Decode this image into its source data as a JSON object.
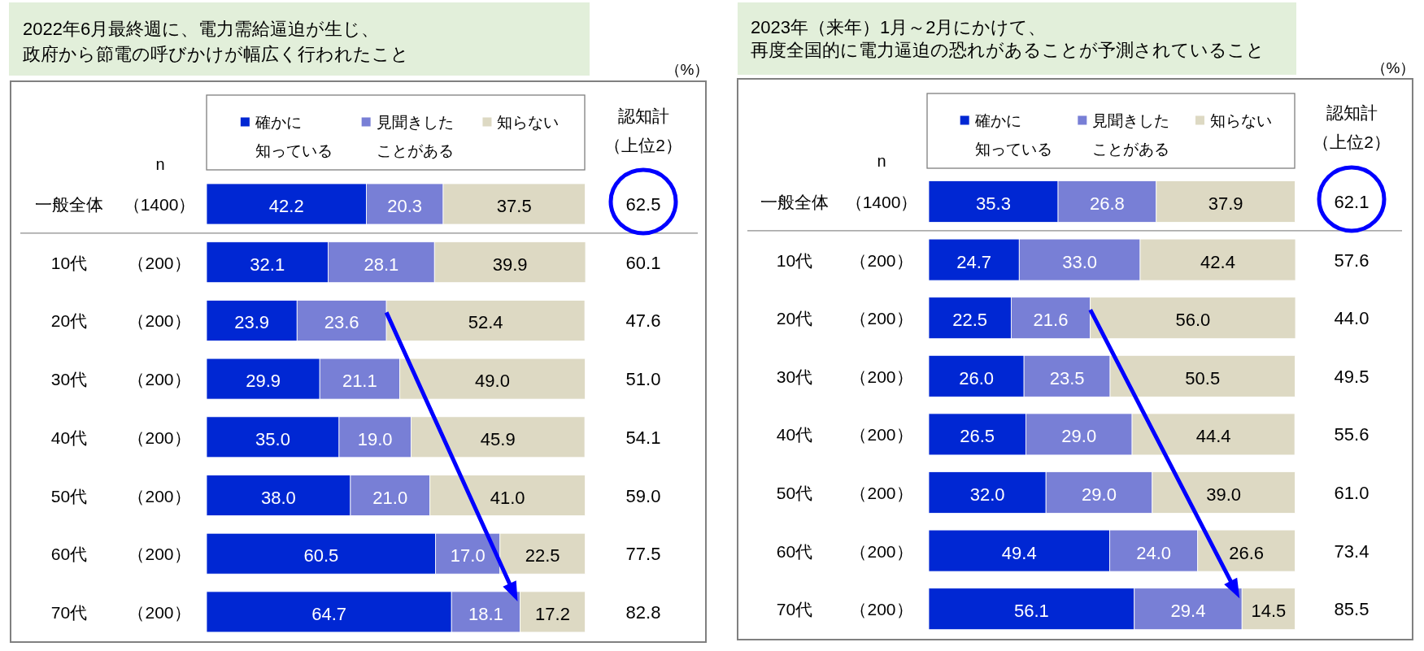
{
  "chart_data": [
    {
      "type": "bar",
      "orientation": "horizontal",
      "stacked": true,
      "title": "2022年6月最終週に、電力需給逼迫が生じ、政府から節電の呼びかけが幅広く行われたこと",
      "categories": [
        "一般全体",
        "10代",
        "20代",
        "30代",
        "40代",
        "50代",
        "60代",
        "70代"
      ],
      "y2_categories": [
        "（1400）",
        "（200）",
        "（200）",
        "（200）",
        "（200）",
        "（200）",
        "（200）",
        "（200）"
      ],
      "series": [
        {
          "name": "確かに知っている",
          "color": "#0027d3",
          "values": [
            42.2,
            32.1,
            23.9,
            29.9,
            35.0,
            38.0,
            60.5,
            64.7
          ],
          "value_labels": [
            "42.2",
            "32.1",
            "23.9",
            "29.9",
            "35.0",
            "38.0",
            "60.5",
            "64.7"
          ]
        },
        {
          "name": "見聞きしたことがある",
          "color": "#787fd6",
          "values": [
            20.3,
            28.1,
            23.6,
            21.1,
            19.0,
            21.0,
            17.0,
            18.1
          ],
          "value_labels": [
            "20.3",
            "28.1",
            "23.6",
            "21.1",
            "19.0",
            "21.0",
            "17.0",
            "18.1"
          ]
        },
        {
          "name": "知らない",
          "color": "#ddd9c3",
          "values": [
            37.5,
            39.9,
            52.4,
            49.0,
            45.9,
            41.0,
            22.5,
            17.2
          ],
          "value_labels": [
            "37.5",
            "39.9",
            "52.4",
            "49.0",
            "45.9",
            "41.0",
            "22.5",
            "17.2"
          ]
        }
      ],
      "legend": "top",
      "annotations": [
        "n",
        "認知計（上位2）",
        "（%）",
        "62.5",
        "60.1",
        "47.6",
        "51.0",
        "54.1",
        "59.0",
        "77.5",
        "82.8"
      ]
    },
    {
      "type": "bar",
      "orientation": "horizontal",
      "stacked": true,
      "title": "2023年（来年）1月～2月にかけて、再度全国的に電力逼迫の恐れがあることが予測されていること",
      "categories": [
        "一般全体",
        "10代",
        "20代",
        "30代",
        "40代",
        "50代",
        "60代",
        "70代"
      ],
      "y2_categories": [
        "（1400）",
        "（200）",
        "（200）",
        "（200）",
        "（200）",
        "（200）",
        "（200）",
        "（200）"
      ],
      "series": [
        {
          "name": "確かに知っている",
          "color": "#0027d3",
          "values": [
            35.3,
            24.7,
            22.5,
            26.0,
            26.5,
            32.0,
            49.4,
            56.1
          ],
          "value_labels": [
            "35.3",
            "24.7",
            "22.5",
            "26.0",
            "26.5",
            "32.0",
            "49.4",
            "56.1"
          ]
        },
        {
          "name": "見聞きしたことがある",
          "color": "#787fd6",
          "values": [
            26.8,
            33.0,
            21.6,
            23.5,
            29.0,
            29.0,
            24.0,
            29.4
          ],
          "value_labels": [
            "26.8",
            "33.0",
            "21.6",
            "23.5",
            "29.0",
            "29.0",
            "24.0",
            "29.4"
          ]
        },
        {
          "name": "知らない",
          "color": "#ddd9c3",
          "values": [
            37.9,
            42.4,
            56.0,
            50.5,
            44.4,
            39.0,
            26.6,
            14.5
          ],
          "value_labels": [
            "37.9",
            "42.4",
            "56.0",
            "50.5",
            "44.4",
            "39.0",
            "26.6",
            "14.5"
          ]
        }
      ],
      "legend": "top",
      "annotations": [
        "n",
        "認知計（上位2）",
        "（%）",
        "62.1",
        "57.6",
        "44.0",
        "49.5",
        "55.6",
        "61.0",
        "73.4",
        "85.5"
      ]
    }
  ]
}
